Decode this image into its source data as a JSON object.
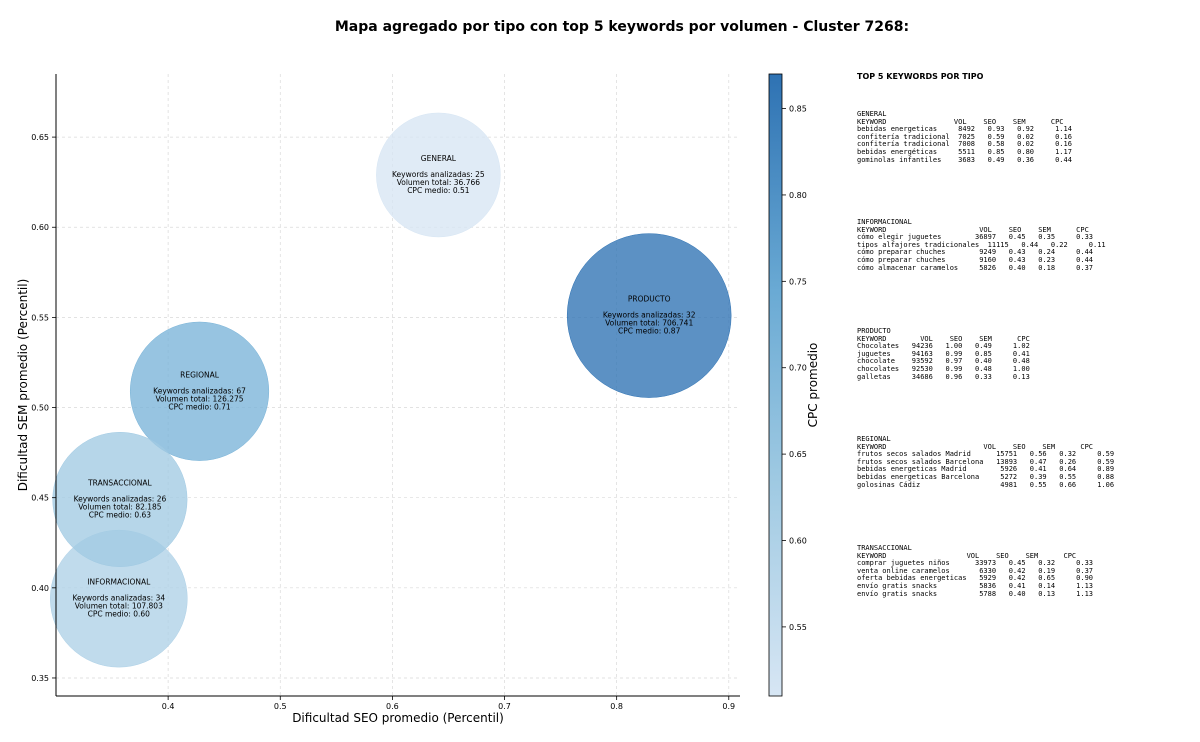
{
  "chart_data": {
    "type": "scatter",
    "title": "Mapa agregado por tipo con top 5 keywords por volumen - Cluster 7268:",
    "xlabel": "Dificultad SEO promedio (Percentil)",
    "ylabel": "Dificultad SEM promedio (Percentil)",
    "xlim": [
      0.3,
      0.91
    ],
    "ylim": [
      0.34,
      0.685
    ],
    "xticks": [
      0.4,
      0.5,
      0.6,
      0.7,
      0.8,
      0.9
    ],
    "yticks": [
      0.35,
      0.4,
      0.45,
      0.5,
      0.55,
      0.6,
      0.65
    ],
    "grid": true,
    "colorbar": {
      "label": "CPC promedio",
      "min": 0.51,
      "max": 0.87,
      "ticks": [
        0.55,
        0.6,
        0.65,
        0.7,
        0.75,
        0.8,
        0.85
      ]
    },
    "label_keywords": "Keywords analizadas:",
    "label_volume": "Volumen total:",
    "label_cpc": "CPC medio:",
    "points": [
      {
        "name": "GENERAL",
        "x": 0.641,
        "y": 0.629,
        "keywords": "25",
        "volume": 36766,
        "volume_text": "36.766",
        "cpc": 0.51,
        "cpc_text": "0.51"
      },
      {
        "name": "PRODUCTO",
        "x": 0.829,
        "y": 0.551,
        "keywords": "32",
        "volume": 706741,
        "volume_text": "706.741",
        "cpc": 0.87,
        "cpc_text": "0.87"
      },
      {
        "name": "REGIONAL",
        "x": 0.428,
        "y": 0.509,
        "keywords": "67",
        "volume": 126275,
        "volume_text": "126.275",
        "cpc": 0.71,
        "cpc_text": "0.71"
      },
      {
        "name": "TRANSACCIONAL",
        "x": 0.357,
        "y": 0.449,
        "keywords": "26",
        "volume": 82185,
        "volume_text": "82.185",
        "cpc": 0.63,
        "cpc_text": "0.63"
      },
      {
        "name": "INFORMACIONAL",
        "x": 0.356,
        "y": 0.394,
        "keywords": "34",
        "volume": 107803,
        "volume_text": "107.803",
        "cpc": 0.6,
        "cpc_text": "0.60"
      }
    ]
  },
  "side_panel": {
    "title": "TOP 5 KEYWORDS POR TIPO",
    "blocks": [
      {
        "name": "GENERAL",
        "header": "KEYWORD                VOL    SEO    SEM      CPC",
        "rows": [
          "bebidas energeticas     8492   0.93   0.92     1.14",
          "confitería tradicional  7025   0.59   0.02     0.16",
          "confitería tradicional  7008   0.58   0.02     0.16",
          "bebidas energéticas     5511   0.85   0.80     1.17",
          "gominolas infantiles    3683   0.49   0.36     0.44"
        ]
      },
      {
        "name": "INFORMACIONAL",
        "header": "KEYWORD                      VOL    SEO    SEM      CPC",
        "rows": [
          "cómo elegir juguetes        36897   0.45   0.35     0.33",
          "tipos alfajores tradicionales  11115   0.44   0.22     0.11",
          "cómo preparar chuches        9249   0.43   0.24     0.44",
          "cómo preparar chuches        9160   0.43   0.23     0.44",
          "cómo almacenar caramelos     5826   0.40   0.18     0.37"
        ]
      },
      {
        "name": "PRODUCTO",
        "header": "KEYWORD        VOL    SEO    SEM      CPC",
        "rows": [
          "Chocolates   94236   1.00   0.49     1.02",
          "juguetes     94163   0.99   0.85     0.41",
          "chocolate    93592   0.97   0.40     0.48",
          "chocolates   92530   0.99   0.48     1.00",
          "galletas     34686   0.96   0.33     0.13"
        ]
      },
      {
        "name": "REGIONAL",
        "header": "KEYWORD                       VOL    SEO    SEM      CPC",
        "rows": [
          "frutos secos salados Madrid      15751   0.56   0.32     0.59",
          "frutos secos salados Barcelona   13893   0.47   0.26     0.59",
          "bebidas energeticas Madrid        5926   0.41   0.64     0.89",
          "bebidas energeticas Barcelona     5272   0.39   0.55     0.88",
          "golosinas Cádiz                   4981   0.55   0.66     1.06"
        ]
      },
      {
        "name": "TRANSACCIONAL",
        "header": "KEYWORD                   VOL    SEO    SEM      CPC",
        "rows": [
          "comprar juguetes niños      33973   0.45   0.32     0.33",
          "venta online caramelos       6330   0.42   0.19     0.37",
          "oferta bebidas energeticas   5929   0.42   0.65     0.90",
          "envío gratis snacks          5836   0.41   0.14     1.13",
          "envío gratis snacks          5788   0.40   0.13     1.13"
        ]
      }
    ]
  }
}
